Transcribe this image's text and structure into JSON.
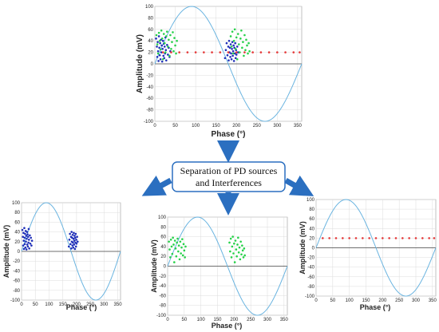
{
  "flow": {
    "separation_line1": "Separation of PD sources",
    "separation_line2": "and Interferences"
  },
  "colors": {
    "sine": "#6ab4e0",
    "grid": "#dcdcdc",
    "source_blue": "#1f2fb8",
    "source_green": "#27d24a",
    "interference_red": "#e53a3a",
    "arrow": "#2b6fc0",
    "box_border": "#2b6fc0"
  },
  "chart_data": [
    {
      "type": "scatter",
      "id": "combined",
      "xlabel": "Phase (°)",
      "ylabel": "Amplitude (mV)",
      "xlim": [
        0,
        360
      ],
      "ylim": [
        -100,
        100
      ],
      "xticks": [
        0,
        50,
        100,
        150,
        200,
        250,
        300,
        350
      ],
      "yticks": [
        100,
        80,
        60,
        40,
        20,
        0,
        -20,
        -40,
        -60,
        -80,
        -100
      ],
      "grid": true,
      "reference_sine_amplitude": 100,
      "series": [
        {
          "color": "blue",
          "points": [
            [
              3,
              44
            ],
            [
              5,
              30
            ],
            [
              6,
              12
            ],
            [
              7,
              38
            ],
            [
              8,
              22
            ],
            [
              9,
              5
            ],
            [
              10,
              48
            ],
            [
              11,
              28
            ],
            [
              12,
              15
            ],
            [
              13,
              36
            ],
            [
              14,
              8
            ],
            [
              15,
              42
            ],
            [
              16,
              20
            ],
            [
              17,
              32
            ],
            [
              18,
              4
            ],
            [
              19,
              26
            ],
            [
              20,
              40
            ],
            [
              21,
              14
            ],
            [
              22,
              35
            ],
            [
              23,
              10
            ],
            [
              24,
              30
            ],
            [
              25,
              18
            ],
            [
              26,
              46
            ],
            [
              27,
              24
            ],
            [
              28,
              6
            ],
            [
              30,
              33
            ],
            [
              32,
              16
            ],
            [
              34,
              28
            ],
            [
              36,
              12
            ],
            [
              38,
              22
            ],
            [
              172,
              10
            ],
            [
              174,
              24
            ],
            [
              176,
              36
            ],
            [
              178,
              15
            ],
            [
              180,
              30
            ],
            [
              181,
              6
            ],
            [
              182,
              40
            ],
            [
              183,
              20
            ],
            [
              184,
              28
            ],
            [
              185,
              12
            ],
            [
              186,
              34
            ],
            [
              187,
              18
            ],
            [
              188,
              8
            ],
            [
              189,
              26
            ],
            [
              190,
              38
            ],
            [
              191,
              14
            ],
            [
              192,
              22
            ],
            [
              193,
              32
            ],
            [
              194,
              5
            ],
            [
              195,
              28
            ],
            [
              196,
              18
            ],
            [
              197,
              36
            ],
            [
              198,
              10
            ],
            [
              199,
              24
            ],
            [
              200,
              16
            ],
            [
              202,
              30
            ],
            [
              204,
              20
            ]
          ]
        },
        {
          "color": "green",
          "points": [
            [
              4,
              50
            ],
            [
              6,
              34
            ],
            [
              8,
              18
            ],
            [
              10,
              54
            ],
            [
              12,
              40
            ],
            [
              14,
              25
            ],
            [
              16,
              58
            ],
            [
              18,
              44
            ],
            [
              20,
              8
            ],
            [
              22,
              52
            ],
            [
              24,
              36
            ],
            [
              26,
              20
            ],
            [
              28,
              48
            ],
            [
              30,
              56
            ],
            [
              32,
              30
            ],
            [
              34,
              42
            ],
            [
              36,
              14
            ],
            [
              38,
              50
            ],
            [
              40,
              26
            ],
            [
              42,
              38
            ],
            [
              44,
              55
            ],
            [
              46,
              22
            ],
            [
              48,
              45
            ],
            [
              50,
              32
            ],
            [
              52,
              18
            ],
            [
              54,
              40
            ],
            [
              186,
              48
            ],
            [
              188,
              30
            ],
            [
              190,
              56
            ],
            [
              192,
              18
            ],
            [
              194,
              40
            ],
            [
              196,
              60
            ],
            [
              198,
              26
            ],
            [
              200,
              46
            ],
            [
              202,
              8
            ],
            [
              204,
              52
            ],
            [
              206,
              34
            ],
            [
              208,
              20
            ],
            [
              210,
              44
            ],
            [
              212,
              58
            ],
            [
              214,
              28
            ],
            [
              216,
              38
            ],
            [
              218,
              14
            ],
            [
              220,
              50
            ],
            [
              222,
              24
            ],
            [
              224,
              42
            ],
            [
              226,
              32
            ],
            [
              228,
              18
            ],
            [
              230,
              36
            ],
            [
              232,
              22
            ]
          ]
        },
        {
          "color": "red",
          "points": [
            [
              20,
              20
            ],
            [
              40,
              20
            ],
            [
              60,
              20
            ],
            [
              80,
              20
            ],
            [
              100,
              20
            ],
            [
              120,
              20
            ],
            [
              140,
              20
            ],
            [
              160,
              20
            ],
            [
              180,
              20
            ],
            [
              200,
              20
            ],
            [
              220,
              20
            ],
            [
              240,
              20
            ],
            [
              260,
              20
            ],
            [
              280,
              20
            ],
            [
              300,
              20
            ],
            [
              320,
              20
            ],
            [
              340,
              20
            ],
            [
              355,
              20
            ]
          ]
        }
      ]
    },
    {
      "type": "scatter",
      "id": "source-1",
      "xlabel": "Phase (°)",
      "ylabel": "Amplitude (mV)",
      "xlim": [
        0,
        360
      ],
      "ylim": [
        -100,
        100
      ],
      "xticks": [
        0,
        50,
        100,
        150,
        200,
        250,
        300,
        350
      ],
      "yticks": [
        100,
        80,
        60,
        40,
        20,
        0,
        -20,
        -40,
        -60,
        -80,
        -100
      ],
      "grid": true,
      "reference_sine_amplitude": 100,
      "series": [
        {
          "color": "blue",
          "points": [
            [
              3,
              44
            ],
            [
              5,
              30
            ],
            [
              6,
              12
            ],
            [
              7,
              38
            ],
            [
              8,
              22
            ],
            [
              9,
              5
            ],
            [
              10,
              48
            ],
            [
              11,
              28
            ],
            [
              12,
              15
            ],
            [
              13,
              36
            ],
            [
              14,
              8
            ],
            [
              15,
              42
            ],
            [
              16,
              20
            ],
            [
              17,
              32
            ],
            [
              18,
              4
            ],
            [
              19,
              26
            ],
            [
              20,
              40
            ],
            [
              21,
              14
            ],
            [
              22,
              35
            ],
            [
              23,
              10
            ],
            [
              24,
              30
            ],
            [
              25,
              18
            ],
            [
              26,
              46
            ],
            [
              27,
              24
            ],
            [
              28,
              6
            ],
            [
              30,
              33
            ],
            [
              32,
              16
            ],
            [
              34,
              28
            ],
            [
              36,
              12
            ],
            [
              38,
              22
            ],
            [
              172,
              10
            ],
            [
              174,
              24
            ],
            [
              176,
              36
            ],
            [
              178,
              15
            ],
            [
              180,
              30
            ],
            [
              181,
              6
            ],
            [
              182,
              40
            ],
            [
              183,
              20
            ],
            [
              184,
              28
            ],
            [
              185,
              12
            ],
            [
              186,
              34
            ],
            [
              187,
              18
            ],
            [
              188,
              8
            ],
            [
              189,
              26
            ],
            [
              190,
              38
            ],
            [
              191,
              14
            ],
            [
              192,
              22
            ],
            [
              193,
              32
            ],
            [
              194,
              5
            ],
            [
              195,
              28
            ],
            [
              196,
              18
            ],
            [
              197,
              36
            ],
            [
              198,
              10
            ],
            [
              199,
              24
            ],
            [
              200,
              16
            ],
            [
              202,
              30
            ],
            [
              204,
              20
            ]
          ]
        }
      ]
    },
    {
      "type": "scatter",
      "id": "source-2",
      "xlabel": "Phase (°)",
      "ylabel": "Amplitude (mV)",
      "xlim": [
        0,
        360
      ],
      "ylim": [
        -100,
        100
      ],
      "xticks": [
        0,
        50,
        100,
        150,
        200,
        250,
        300,
        350
      ],
      "yticks": [
        100,
        80,
        60,
        40,
        20,
        0,
        -20,
        -40,
        -60,
        -80,
        -100
      ],
      "grid": true,
      "reference_sine_amplitude": 100,
      "series": [
        {
          "color": "green",
          "points": [
            [
              4,
              50
            ],
            [
              6,
              34
            ],
            [
              8,
              18
            ],
            [
              10,
              54
            ],
            [
              12,
              40
            ],
            [
              14,
              25
            ],
            [
              16,
              58
            ],
            [
              18,
              44
            ],
            [
              20,
              8
            ],
            [
              22,
              52
            ],
            [
              24,
              36
            ],
            [
              26,
              20
            ],
            [
              28,
              48
            ],
            [
              30,
              56
            ],
            [
              32,
              30
            ],
            [
              34,
              42
            ],
            [
              36,
              14
            ],
            [
              38,
              50
            ],
            [
              40,
              26
            ],
            [
              42,
              38
            ],
            [
              44,
              55
            ],
            [
              46,
              22
            ],
            [
              48,
              45
            ],
            [
              50,
              32
            ],
            [
              52,
              18
            ],
            [
              54,
              40
            ],
            [
              186,
              48
            ],
            [
              188,
              30
            ],
            [
              190,
              56
            ],
            [
              192,
              18
            ],
            [
              194,
              40
            ],
            [
              196,
              60
            ],
            [
              198,
              26
            ],
            [
              200,
              46
            ],
            [
              202,
              8
            ],
            [
              204,
              52
            ],
            [
              206,
              34
            ],
            [
              208,
              20
            ],
            [
              210,
              44
            ],
            [
              212,
              58
            ],
            [
              214,
              28
            ],
            [
              216,
              38
            ],
            [
              218,
              14
            ],
            [
              220,
              50
            ],
            [
              222,
              24
            ],
            [
              224,
              42
            ],
            [
              226,
              32
            ],
            [
              228,
              18
            ],
            [
              230,
              36
            ],
            [
              232,
              22
            ]
          ]
        }
      ]
    },
    {
      "type": "scatter",
      "id": "interference",
      "xlabel": "Phase (°)",
      "ylabel": "Amplitude (mV)",
      "xlim": [
        0,
        360
      ],
      "ylim": [
        -100,
        100
      ],
      "xticks": [
        0,
        50,
        100,
        150,
        200,
        250,
        300,
        350
      ],
      "yticks": [
        100,
        80,
        60,
        40,
        20,
        0,
        -20,
        -40,
        -60,
        -80,
        -100
      ],
      "grid": true,
      "reference_sine_amplitude": 100,
      "series": [
        {
          "color": "red",
          "points": [
            [
              20,
              20
            ],
            [
              40,
              20
            ],
            [
              60,
              20
            ],
            [
              80,
              20
            ],
            [
              100,
              20
            ],
            [
              120,
              20
            ],
            [
              140,
              20
            ],
            [
              160,
              20
            ],
            [
              180,
              20
            ],
            [
              200,
              20
            ],
            [
              220,
              20
            ],
            [
              240,
              20
            ],
            [
              260,
              20
            ],
            [
              280,
              20
            ],
            [
              300,
              20
            ],
            [
              320,
              20
            ],
            [
              340,
              20
            ],
            [
              355,
              20
            ]
          ]
        }
      ]
    }
  ]
}
